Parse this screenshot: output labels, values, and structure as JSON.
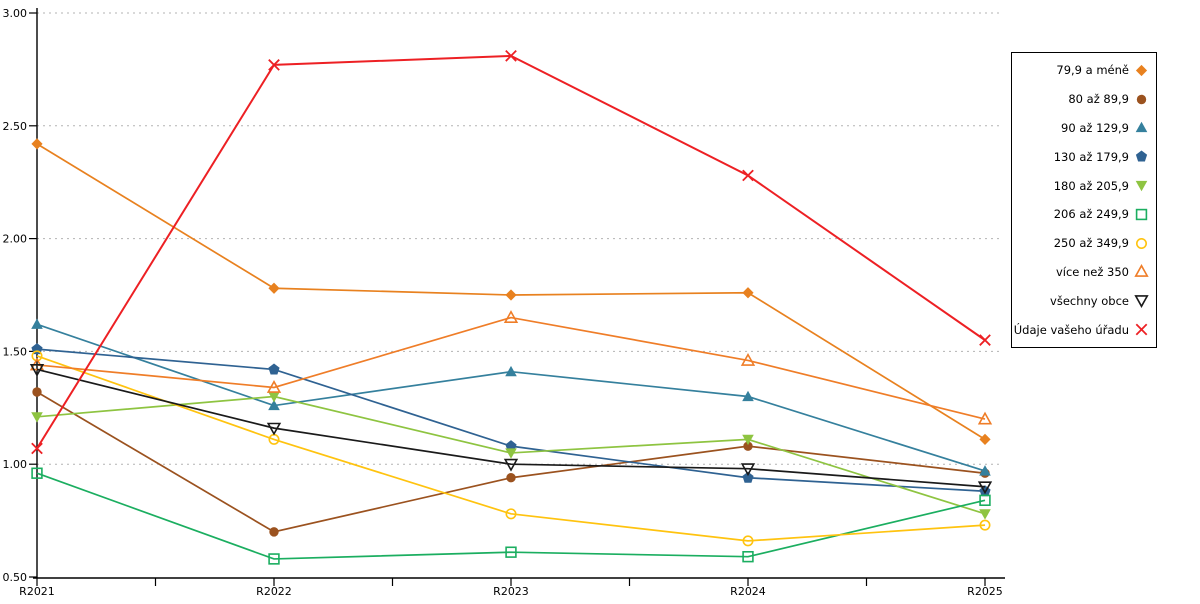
{
  "page": {
    "background": "#FFFFFF"
  },
  "chart_data": {
    "type": "line",
    "title": "",
    "xlabel": "",
    "ylabel": "",
    "categories": [
      "R2021",
      "R2022",
      "R2023",
      "R2024",
      "R2025"
    ],
    "ylim": [
      0.5,
      3.0
    ],
    "ytick_labels": [
      "3.00",
      "2.50",
      "2.00",
      "1.50",
      "1.00",
      "0.50"
    ],
    "ytick_values": [
      3.0,
      2.5,
      2.0,
      1.5,
      1.0,
      0.5
    ],
    "grid": "horizontal-dashed",
    "grid_color": "#B3B3B3",
    "axis_color": "#000000",
    "legend_position": "right-outside",
    "series": [
      {
        "name": "79,9 a méně",
        "marker": "diamond",
        "fill": "filled",
        "color": "#E8811F",
        "values": [
          2.42,
          1.78,
          1.75,
          1.76,
          1.11
        ]
      },
      {
        "name": "80 až 89,9",
        "marker": "circle",
        "fill": "filled",
        "color": "#9B521F",
        "values": [
          1.32,
          0.7,
          0.94,
          1.08,
          0.96
        ]
      },
      {
        "name": "90 až 129,9",
        "marker": "triangle-up",
        "fill": "filled",
        "color": "#35809D",
        "values": [
          1.62,
          1.26,
          1.41,
          1.3,
          0.97
        ]
      },
      {
        "name": "130 až 179,9",
        "marker": "pentagon",
        "fill": "filled",
        "color": "#2F6292",
        "values": [
          1.51,
          1.42,
          1.08,
          0.94,
          0.88
        ]
      },
      {
        "name": "180 až 205,9",
        "marker": "triangle-down",
        "fill": "filled",
        "color": "#8EC441",
        "values": [
          1.21,
          1.3,
          1.05,
          1.11,
          0.78
        ]
      },
      {
        "name": "206 až 249,9",
        "marker": "square",
        "fill": "open",
        "color": "#1BAE60",
        "values": [
          0.96,
          0.58,
          0.61,
          0.59,
          0.84
        ]
      },
      {
        "name": "250 až 349,9",
        "marker": "circle",
        "fill": "open",
        "color": "#FFC30F",
        "values": [
          1.48,
          1.11,
          0.78,
          0.66,
          0.73
        ]
      },
      {
        "name": "více než 350",
        "marker": "triangle-up",
        "fill": "open",
        "color": "#EF7D28",
        "values": [
          1.44,
          1.34,
          1.65,
          1.46,
          1.2
        ]
      },
      {
        "name": "všechny obce",
        "marker": "triangle-down",
        "fill": "open",
        "color": "#1A1A1A",
        "values": [
          1.42,
          1.16,
          1.0,
          0.98,
          0.9
        ]
      },
      {
        "name": "Údaje vašeho úřadu",
        "marker": "x",
        "fill": "open",
        "color": "#ED2024",
        "values": [
          1.07,
          2.77,
          2.81,
          2.28,
          1.55
        ]
      }
    ]
  }
}
